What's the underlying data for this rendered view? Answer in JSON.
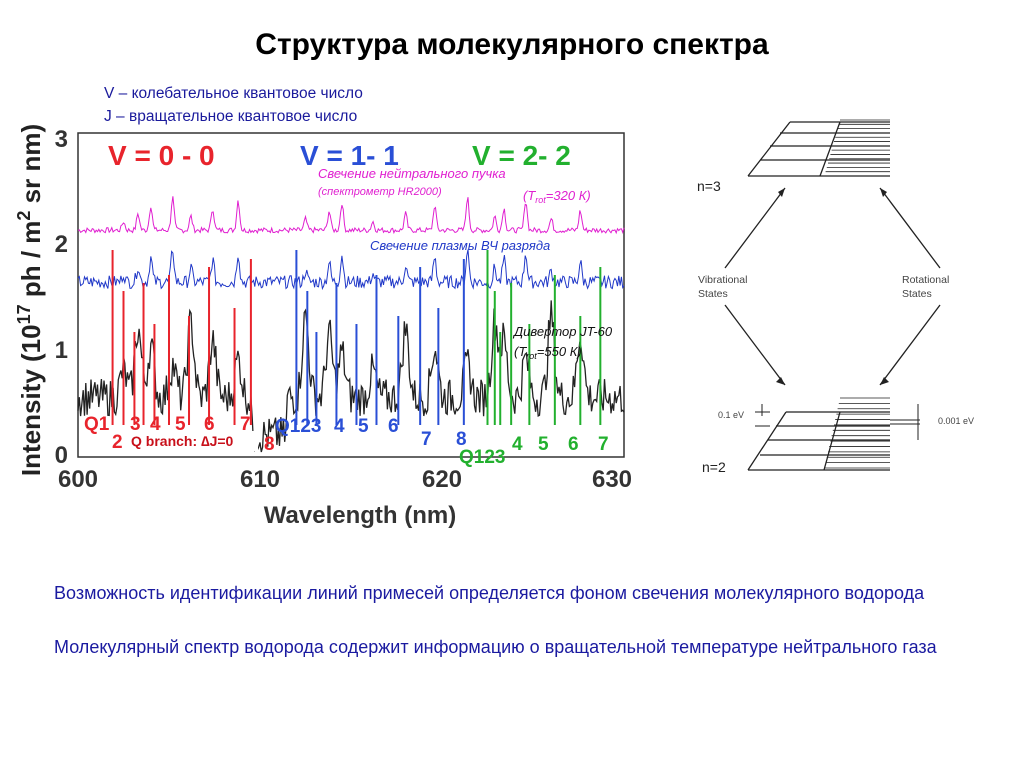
{
  "title": "Структура молекулярного спектра",
  "legend": {
    "v_line": "V – колебательное квантовое число",
    "j_line": "J – вращательное квантовое число"
  },
  "chart_data": {
    "type": "line",
    "xlabel": "Wavelength (nm)",
    "ylabel_parts": [
      "Intensity (10",
      "17",
      " ph / m",
      "2",
      " sr nm)"
    ],
    "x_ticks": [
      "600",
      "610",
      "620",
      "630"
    ],
    "y_ticks": [
      "0",
      "1",
      "2",
      "3"
    ],
    "xlim": [
      600,
      630
    ],
    "ylim": [
      0,
      3
    ],
    "band_labels": [
      {
        "text": "V = 0 - 0",
        "color": "#e8242c"
      },
      {
        "text": "V = 1- 1",
        "color": "#2a4fd6"
      },
      {
        "text": "V = 2- 2",
        "color": "#22b02e"
      }
    ],
    "series": [
      {
        "name": "Свечение нейтрального пучка",
        "sub": "(спектрометр HR2000)",
        "trot": "=320 К",
        "color": "#e020d0",
        "baseline": 2.1
      },
      {
        "name": "Свечение плазмы ВЧ разряда",
        "color": "#2038c8",
        "baseline": 1.62
      },
      {
        "name": "Дивертор JT-60",
        "trot": "=550 К",
        "color": "#222222",
        "baseline": 0.55
      }
    ],
    "line_labels": {
      "red": [
        "Q1",
        "2",
        "3",
        "4",
        "5",
        "6",
        "7",
        "8"
      ],
      "blue": [
        "Q123",
        "4",
        "5",
        "6",
        "7",
        "8"
      ],
      "green": [
        "Q123",
        "4",
        "5",
        "6",
        "7"
      ]
    },
    "q_branch": {
      "text": "Q branch: ",
      "delta": "∆",
      "tail": "J=0"
    }
  },
  "diagram": {
    "n3": "n=3",
    "n2": "n=2",
    "vibrational": [
      "Vibrational",
      "States"
    ],
    "rotational": [
      "Rotational",
      "States"
    ],
    "ev_small": "0.1 eV",
    "ev_tiny": "0.001 eV"
  },
  "paragraphs": [
    "Возможность идентификации линий примесей определяется фоном свечения молекулярного водорода",
    "Молекулярный спектр водорода содержит информацию о вращательной температуре нейтрального газа"
  ],
  "trot_prefix": "(T",
  "trot_sub": "rot",
  "trot_suffix_320": "=320 К)",
  "trot_suffix_550": "=550 К)"
}
